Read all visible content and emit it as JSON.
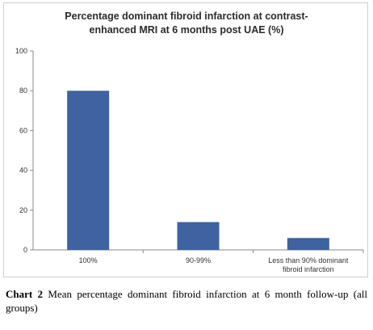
{
  "chart_data": {
    "type": "bar",
    "title_lines": [
      "Percentage dominant fibroid infarction at contrast-",
      "enhanced MRI at 6 months post UAE (%)"
    ],
    "categories": [
      "100%",
      "90-99%",
      "Less than 90% dominant fibroid infarction"
    ],
    "category_label_lines": [
      [
        "100%"
      ],
      [
        "90-99%"
      ],
      [
        "Less than 90% dominant",
        "fibroid infarction"
      ]
    ],
    "values": [
      80,
      14,
      6
    ],
    "ylim": [
      0,
      100
    ],
    "yticks": [
      0,
      20,
      40,
      60,
      80,
      100
    ],
    "xlabel": "",
    "ylabel": "",
    "grid": false,
    "legend": "none",
    "bar_color": "#3f62a0"
  },
  "caption": {
    "label": "Chart 2",
    "text": "Mean percentage dominant fibroid infarction at 6 month follow-up (all groups)"
  }
}
